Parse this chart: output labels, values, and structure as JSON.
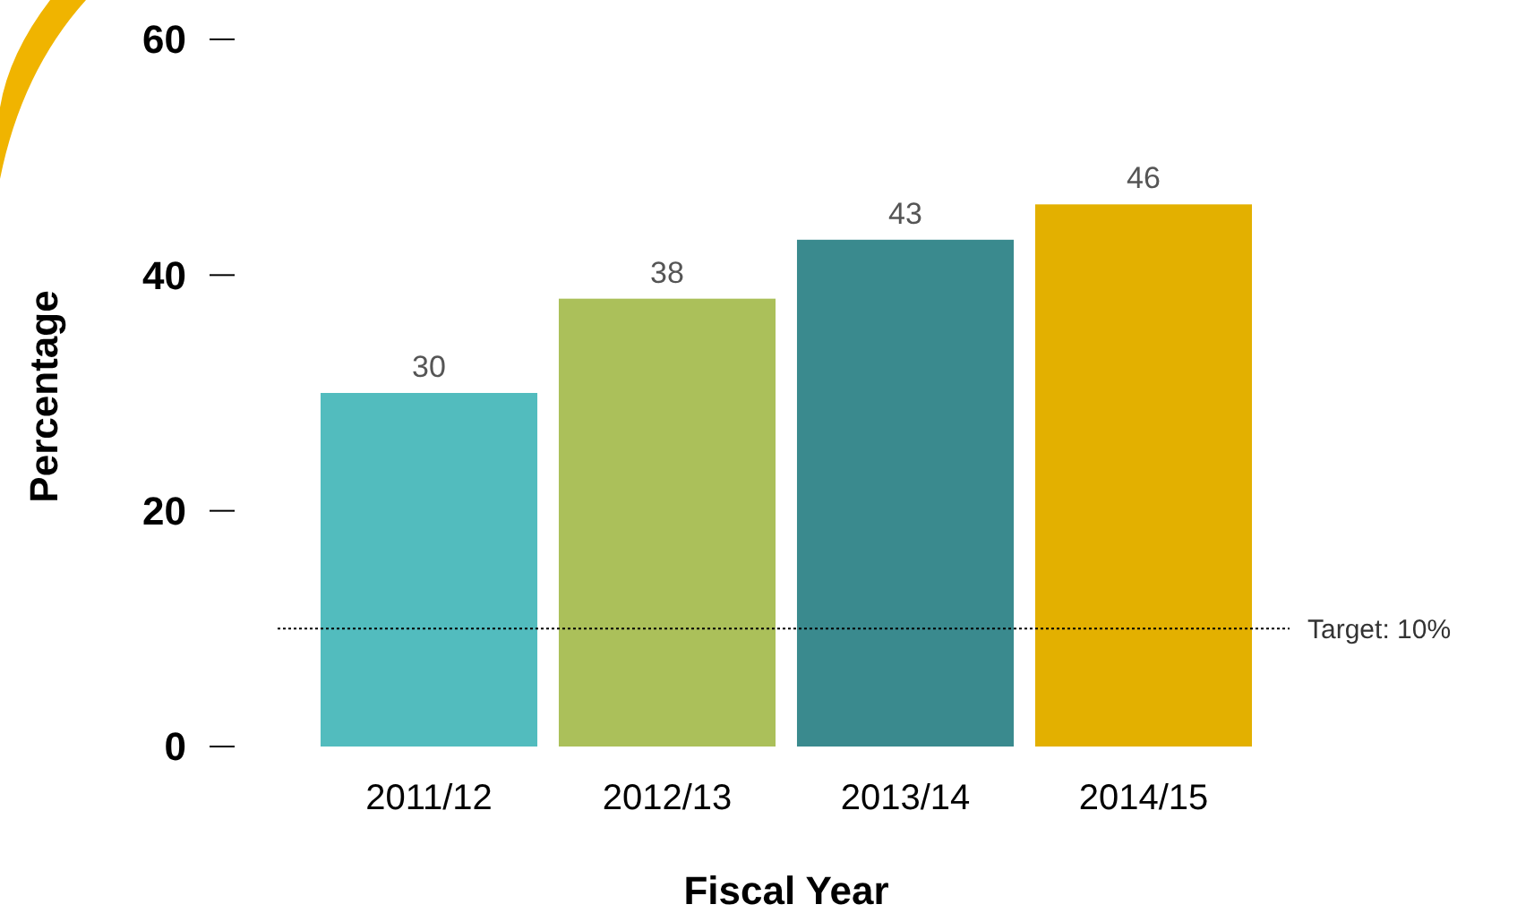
{
  "chart_data": {
    "type": "bar",
    "xlabel": "Fiscal Year",
    "ylabel": "Percentage",
    "categories": [
      "2011/12",
      "2012/13",
      "2013/14",
      "2014/15"
    ],
    "values": [
      30,
      38,
      43,
      46
    ],
    "colors": [
      "#52bcbe",
      "#abc05a",
      "#3a8a8e",
      "#e3b000"
    ],
    "ylim": [
      0,
      60
    ],
    "yticks": [
      0,
      20,
      40,
      60
    ],
    "grid": false,
    "data_labels": true,
    "ref_lines": [
      {
        "axis": "y",
        "value": 10,
        "label": "Target: 10%",
        "color": "#000000",
        "line_style": "dotted"
      }
    ]
  }
}
